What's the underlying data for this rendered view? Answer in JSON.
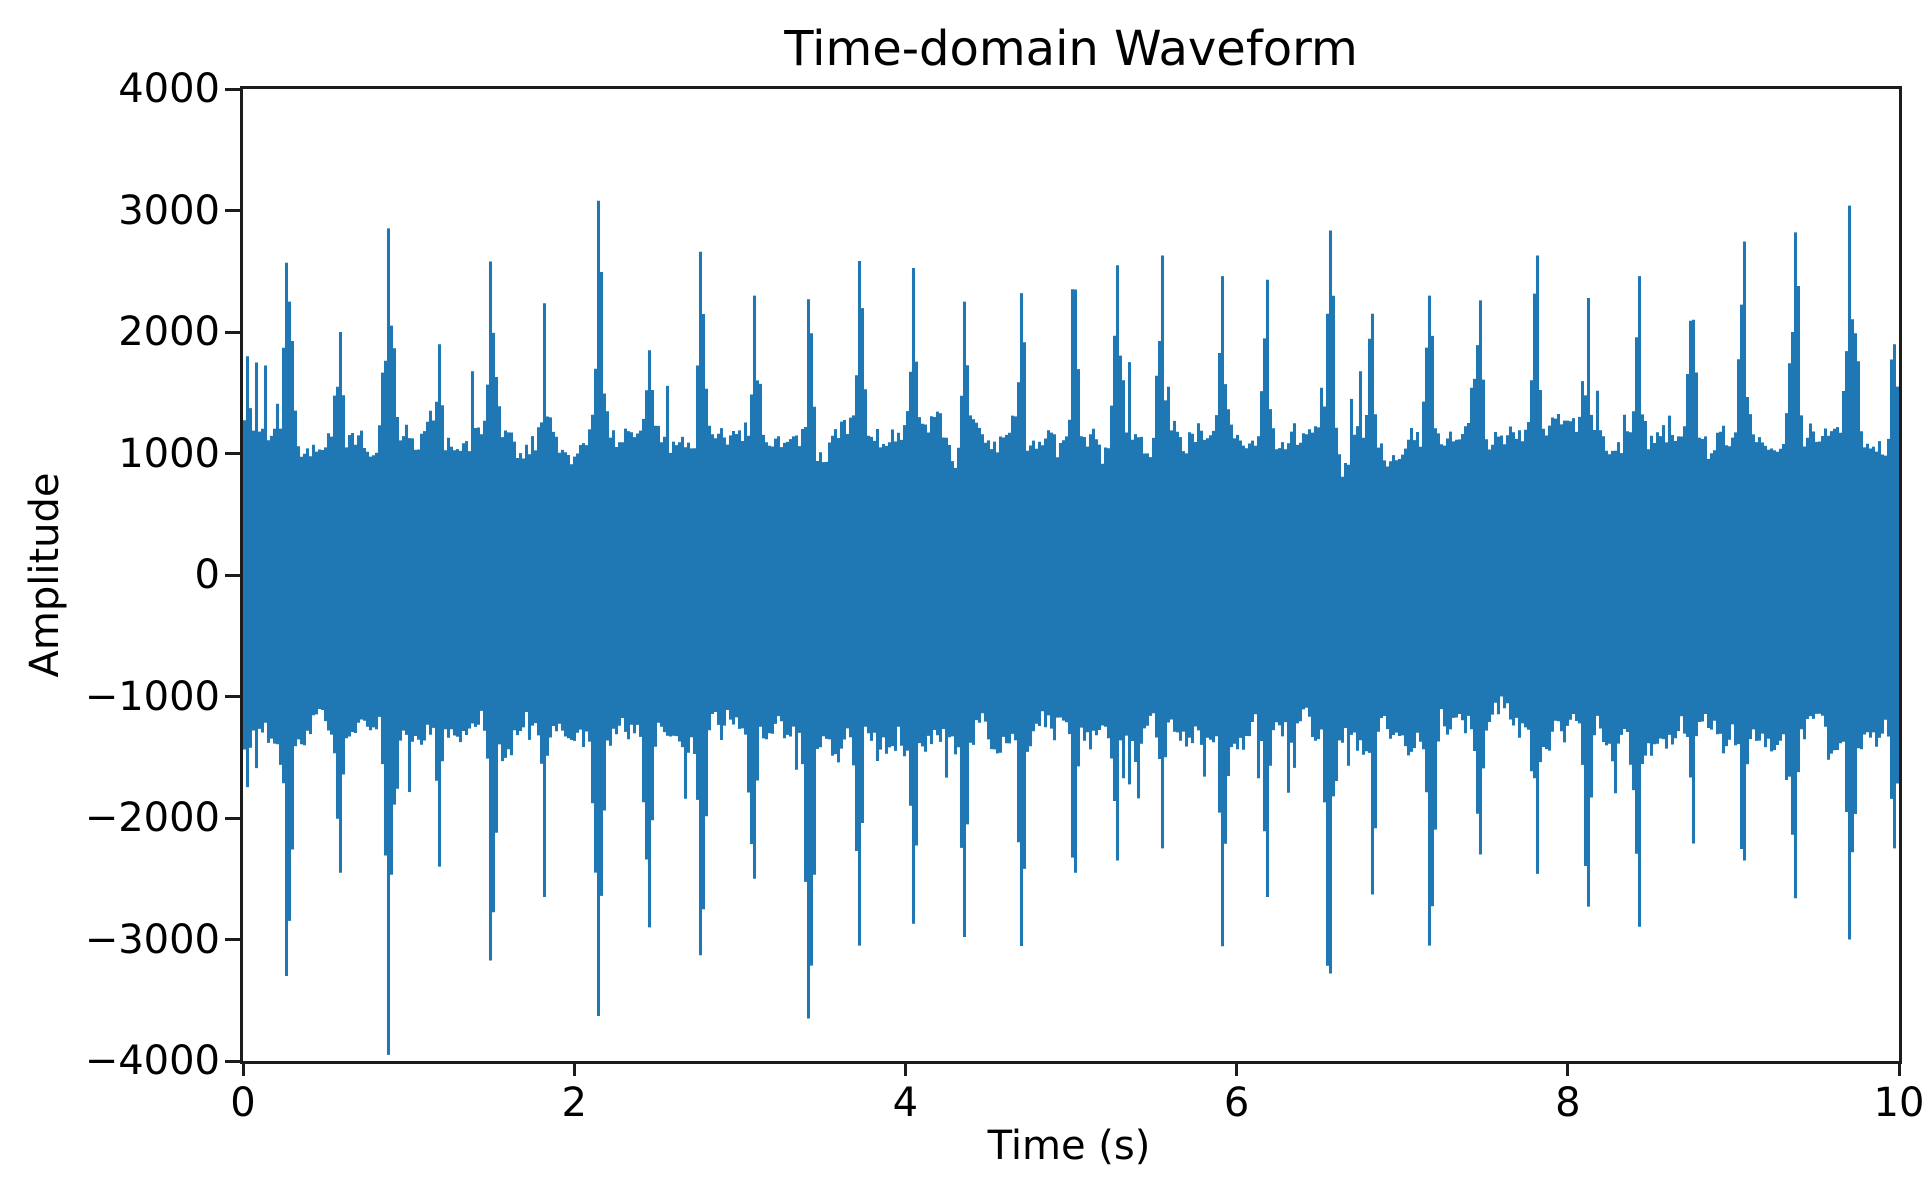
{
  "figure": {
    "title": "Time-domain Waveform",
    "x_axis": {
      "label": "Time (s)",
      "tick_labels": [
        "0",
        "2",
        "4",
        "6",
        "8",
        "10"
      ]
    },
    "y_axis": {
      "label": "Amplitude",
      "tick_labels": [
        "4000",
        "3000",
        "2000",
        "1000",
        "0",
        "−1000",
        "−2000",
        "−3000",
        "−4000"
      ]
    },
    "colors": {
      "waveform": "#1f77b4",
      "axis": "#1c1c1c",
      "text": "#000000",
      "background": "#ffffff"
    }
  },
  "chart_data": {
    "type": "line",
    "title": "Time-domain Waveform",
    "xlabel": "Time (s)",
    "ylabel": "Amplitude",
    "xlim": [
      0,
      10
    ],
    "ylim": [
      -4000,
      4000
    ],
    "xticks": [
      0,
      2,
      4,
      6,
      8,
      10
    ],
    "yticks": [
      4000,
      3000,
      2000,
      1000,
      0,
      -1000,
      -2000,
      -3000,
      -4000
    ],
    "line_color": "#1f77b4",
    "grid": false,
    "legend": null,
    "signal": {
      "description": "Dense audio-like oscillation: solid band from about +1000 to -1200 with jagged amplitude bursts roughly every 0.31 s",
      "core_band": {
        "top_mean": 950,
        "top_min": 700,
        "top_max": 1600,
        "bottom_mean": -1100,
        "bottom_min": -1650,
        "bottom_max": -790
      },
      "burst_half_width_s": 0.135,
      "bursts": [
        {
          "t": 0.02,
          "up": 1800,
          "down": -1400
        },
        {
          "t": 0.27,
          "up": 2570,
          "down": -3300
        },
        {
          "t": 0.58,
          "up": 2000,
          "down": -2450
        },
        {
          "t": 0.88,
          "up": 2750,
          "down": -3520
        },
        {
          "t": 1.18,
          "up": 1900,
          "down": -2400
        },
        {
          "t": 1.5,
          "up": 2580,
          "down": -3060
        },
        {
          "t": 1.82,
          "up": 1950,
          "down": -2650
        },
        {
          "t": 2.15,
          "up": 3080,
          "down": -3630
        },
        {
          "t": 2.45,
          "up": 1850,
          "down": -2900
        },
        {
          "t": 2.77,
          "up": 2660,
          "down": -3130
        },
        {
          "t": 3.08,
          "up": 2300,
          "down": -2500
        },
        {
          "t": 3.42,
          "up": 2270,
          "down": -3650
        },
        {
          "t": 3.72,
          "up": 2550,
          "down": -3050
        },
        {
          "t": 4.05,
          "up": 2250,
          "down": -2520
        },
        {
          "t": 4.36,
          "up": 2250,
          "down": -2780
        },
        {
          "t": 4.7,
          "up": 2320,
          "down": -2900
        },
        {
          "t": 5.02,
          "up": 2350,
          "down": -2450
        },
        {
          "t": 5.28,
          "up": 2550,
          "down": -2350
        },
        {
          "t": 5.55,
          "up": 2630,
          "down": -2250
        },
        {
          "t": 5.92,
          "up": 2460,
          "down": -2960
        },
        {
          "t": 6.18,
          "up": 2430,
          "down": -2650
        },
        {
          "t": 6.56,
          "up": 2835,
          "down": -3280
        },
        {
          "t": 6.82,
          "up": 2150,
          "down": -2630
        },
        {
          "t": 7.17,
          "up": 2300,
          "down": -3050
        },
        {
          "t": 7.47,
          "up": 2260,
          "down": -2300
        },
        {
          "t": 7.81,
          "up": 2630,
          "down": -2460
        },
        {
          "t": 8.12,
          "up": 2280,
          "down": -2650
        },
        {
          "t": 8.43,
          "up": 2400,
          "down": -2700
        },
        {
          "t": 8.75,
          "up": 2100,
          "down": -2210
        },
        {
          "t": 9.06,
          "up": 2745,
          "down": -2350
        },
        {
          "t": 9.37,
          "up": 2820,
          "down": -2660
        },
        {
          "t": 9.71,
          "up": 3040,
          "down": -3000
        },
        {
          "t": 9.97,
          "up": 1900,
          "down": -2250
        }
      ],
      "extremes": {
        "max": 3080,
        "max_t": 2.15,
        "min": -3650,
        "min_t": 3.42
      }
    }
  }
}
